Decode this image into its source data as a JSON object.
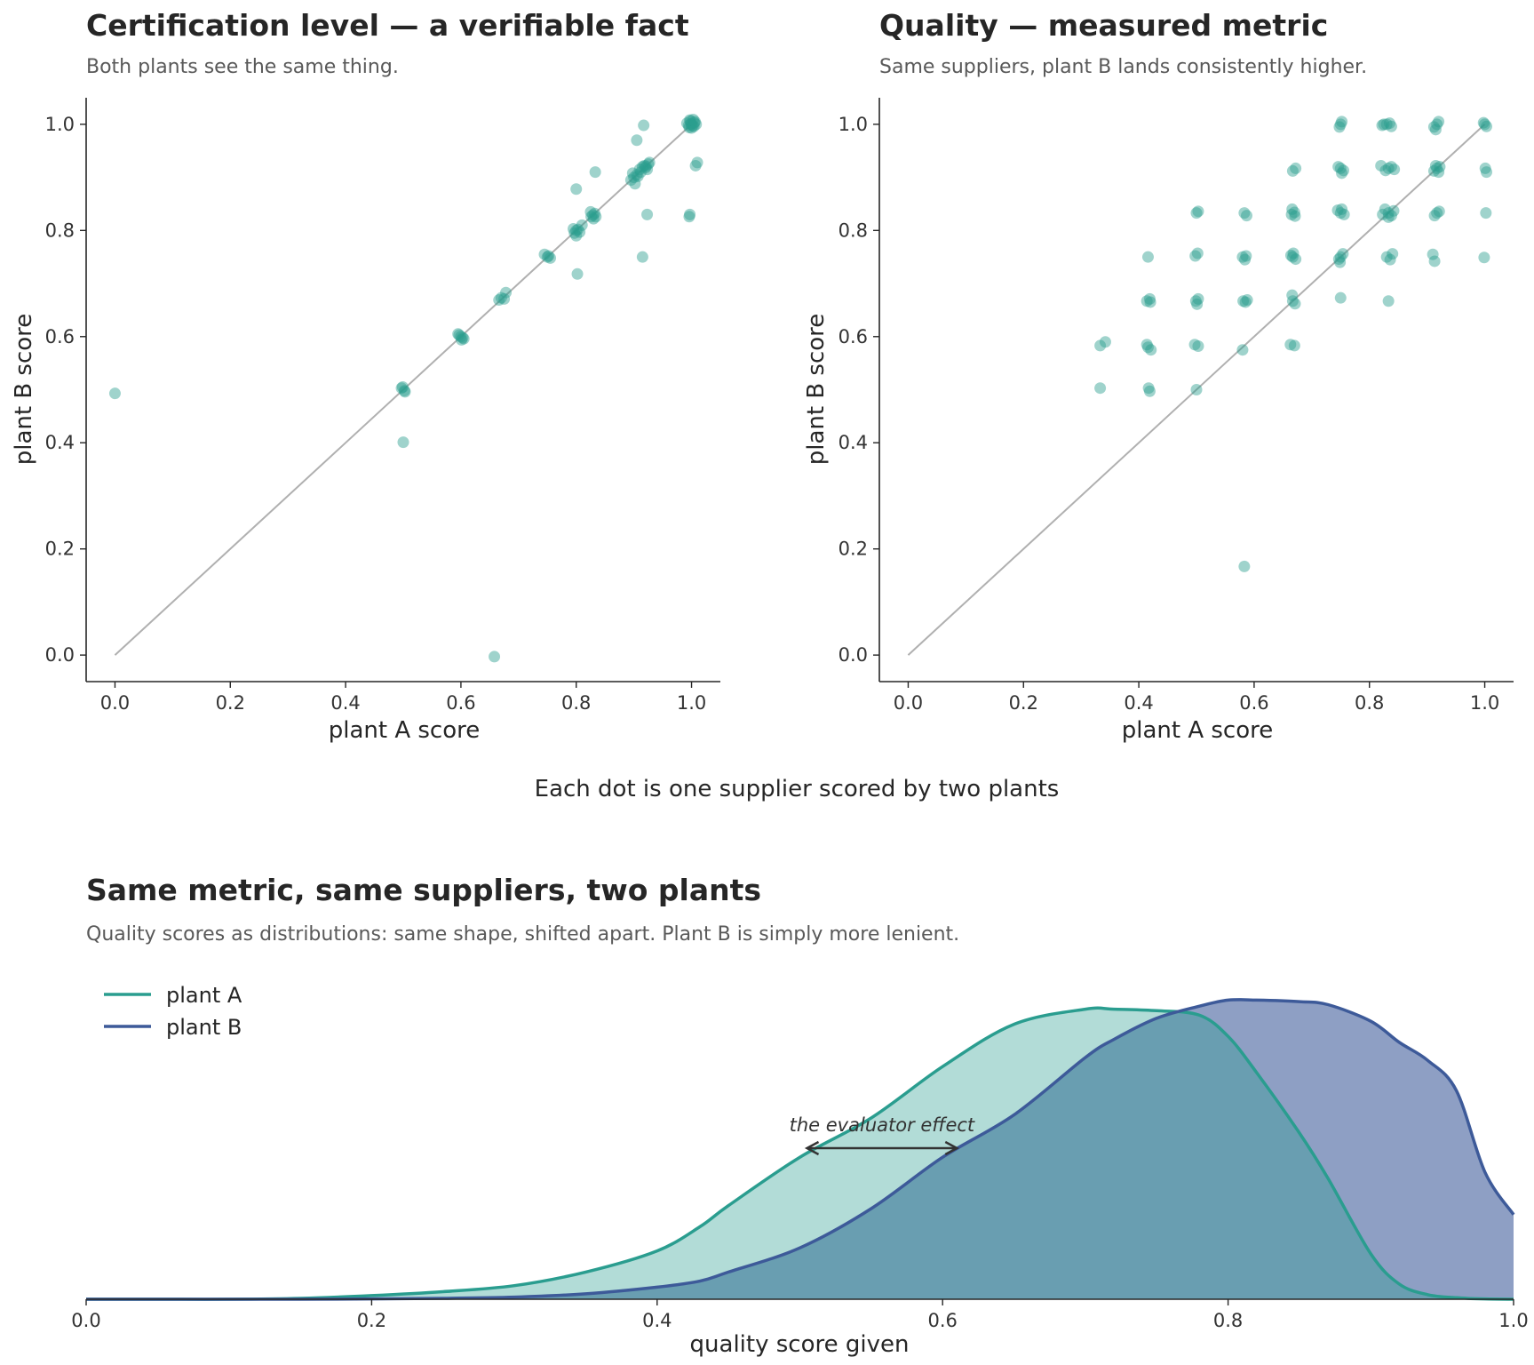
{
  "figure_caption": "Each dot is one supplier scored by two plants",
  "colors": {
    "plant_a": "#2a9d8f",
    "plant_b": "#3d5a99",
    "diagonal": "#b0b0b0",
    "axis": "#262626"
  },
  "chart_data": [
    {
      "type": "scatter",
      "title": "Certification level — a verifiable fact",
      "subtitle": "Both plants see the same thing.",
      "xlabel": "plant A score",
      "ylabel": "plant B score",
      "xlim": [
        -0.05,
        1.05
      ],
      "ylim": [
        -0.05,
        1.05
      ],
      "xticks": [
        "0.0",
        "0.2",
        "0.4",
        "0.6",
        "0.8",
        "1.0"
      ],
      "yticks": [
        "0.0",
        "0.2",
        "0.4",
        "0.6",
        "0.8",
        "1.0"
      ],
      "grid": false,
      "reference_line": "y = x",
      "points": [
        [
          0.0,
          0.493
        ],
        [
          0.658,
          -0.003
        ],
        [
          0.5,
          0.401
        ],
        [
          0.497,
          0.503
        ],
        [
          0.502,
          0.498
        ],
        [
          0.499,
          0.505
        ],
        [
          0.503,
          0.496
        ],
        [
          0.597,
          0.603
        ],
        [
          0.603,
          0.598
        ],
        [
          0.6,
          0.6
        ],
        [
          0.595,
          0.605
        ],
        [
          0.605,
          0.596
        ],
        [
          0.601,
          0.594
        ],
        [
          0.67,
          0.673
        ],
        [
          0.675,
          0.671
        ],
        [
          0.678,
          0.683
        ],
        [
          0.666,
          0.669
        ],
        [
          0.745,
          0.755
        ],
        [
          0.75,
          0.75
        ],
        [
          0.755,
          0.748
        ],
        [
          0.752,
          0.752
        ],
        [
          0.8,
          0.878
        ],
        [
          0.802,
          0.718
        ],
        [
          0.797,
          0.795
        ],
        [
          0.803,
          0.802
        ],
        [
          0.8,
          0.8
        ],
        [
          0.806,
          0.797
        ],
        [
          0.795,
          0.803
        ],
        [
          0.81,
          0.81
        ],
        [
          0.8,
          0.79
        ],
        [
          0.826,
          0.826
        ],
        [
          0.832,
          0.832
        ],
        [
          0.829,
          0.829
        ],
        [
          0.834,
          0.826
        ],
        [
          0.825,
          0.835
        ],
        [
          0.83,
          0.822
        ],
        [
          0.833,
          0.91
        ],
        [
          0.923,
          0.83
        ],
        [
          0.915,
          0.75
        ],
        [
          0.895,
          0.895
        ],
        [
          0.9,
          0.9
        ],
        [
          0.905,
          0.905
        ],
        [
          0.898,
          0.908
        ],
        [
          0.91,
          0.915
        ],
        [
          0.902,
          0.888
        ],
        [
          0.907,
          0.902
        ],
        [
          0.912,
          0.91
        ],
        [
          0.905,
          0.97
        ],
        [
          0.917,
          0.998
        ],
        [
          0.915,
          0.92
        ],
        [
          0.92,
          0.918
        ],
        [
          0.925,
          0.925
        ],
        [
          0.918,
          0.922
        ],
        [
          0.923,
          0.915
        ],
        [
          0.927,
          0.928
        ],
        [
          0.921,
          0.921
        ],
        [
          0.996,
          0.826
        ],
        [
          0.997,
          0.83
        ],
        [
          1.01,
          0.928
        ],
        [
          1.007,
          0.922
        ],
        [
          0.995,
          0.998
        ],
        [
          1.0,
          1.0
        ],
        [
          1.005,
          1.003
        ],
        [
          0.998,
          1.006
        ],
        [
          1.004,
          0.996
        ],
        [
          0.992,
          1.002
        ],
        [
          1.008,
          1.0
        ],
        [
          1.0,
          0.993
        ],
        [
          0.997,
          1.008
        ],
        [
          1.003,
          1.009
        ],
        [
          0.996,
          0.994
        ],
        [
          1.006,
          1.005
        ],
        [
          0.999,
          1.001
        ],
        [
          1.002,
          0.997
        ]
      ]
    },
    {
      "type": "scatter",
      "title": "Quality — measured metric",
      "subtitle": "Same suppliers, plant B lands consistently higher.",
      "xlabel": "plant A score",
      "ylabel": "plant B score",
      "xlim": [
        -0.05,
        1.05
      ],
      "ylim": [
        -0.05,
        1.05
      ],
      "xticks": [
        "0.0",
        "0.2",
        "0.4",
        "0.6",
        "0.8",
        "1.0"
      ],
      "yticks": [
        "0.0",
        "0.2",
        "0.4",
        "0.6",
        "0.8",
        "1.0"
      ],
      "grid": false,
      "reference_line": "y = x",
      "points": [
        [
          0.333,
          0.583
        ],
        [
          0.342,
          0.59
        ],
        [
          0.333,
          0.503
        ],
        [
          0.416,
          0.75
        ],
        [
          0.414,
          0.667
        ],
        [
          0.419,
          0.671
        ],
        [
          0.42,
          0.665
        ],
        [
          0.416,
          0.58
        ],
        [
          0.421,
          0.575
        ],
        [
          0.414,
          0.585
        ],
        [
          0.417,
          0.503
        ],
        [
          0.419,
          0.497
        ],
        [
          0.5,
          0.833
        ],
        [
          0.503,
          0.836
        ],
        [
          0.498,
          0.752
        ],
        [
          0.502,
          0.757
        ],
        [
          0.499,
          0.667
        ],
        [
          0.503,
          0.671
        ],
        [
          0.501,
          0.661
        ],
        [
          0.497,
          0.585
        ],
        [
          0.503,
          0.582
        ],
        [
          0.5,
          0.5
        ],
        [
          0.583,
          0.833
        ],
        [
          0.587,
          0.828
        ],
        [
          0.58,
          0.75
        ],
        [
          0.584,
          0.745
        ],
        [
          0.586,
          0.752
        ],
        [
          0.581,
          0.667
        ],
        [
          0.585,
          0.665
        ],
        [
          0.588,
          0.669
        ],
        [
          0.58,
          0.575
        ],
        [
          0.583,
          0.167
        ],
        [
          0.667,
          0.912
        ],
        [
          0.672,
          0.917
        ],
        [
          0.665,
          0.83
        ],
        [
          0.67,
          0.834
        ],
        [
          0.666,
          0.84
        ],
        [
          0.671,
          0.827
        ],
        [
          0.667,
          0.75
        ],
        [
          0.664,
          0.753
        ],
        [
          0.672,
          0.746
        ],
        [
          0.668,
          0.757
        ],
        [
          0.667,
          0.667
        ],
        [
          0.671,
          0.662
        ],
        [
          0.666,
          0.678
        ],
        [
          0.663,
          0.585
        ],
        [
          0.67,
          0.583
        ],
        [
          0.75,
          1.0
        ],
        [
          0.752,
          1.005
        ],
        [
          0.748,
          0.995
        ],
        [
          0.75,
          0.917
        ],
        [
          0.755,
          0.913
        ],
        [
          0.746,
          0.92
        ],
        [
          0.752,
          0.908
        ],
        [
          0.75,
          0.833
        ],
        [
          0.745,
          0.838
        ],
        [
          0.756,
          0.83
        ],
        [
          0.752,
          0.84
        ],
        [
          0.75,
          0.75
        ],
        [
          0.747,
          0.746
        ],
        [
          0.754,
          0.756
        ],
        [
          0.749,
          0.74
        ],
        [
          0.75,
          0.673
        ],
        [
          0.825,
          1.0
        ],
        [
          0.83,
          1.0
        ],
        [
          0.835,
          1.002
        ],
        [
          0.838,
          0.996
        ],
        [
          0.822,
          0.998
        ],
        [
          0.833,
          0.917
        ],
        [
          0.828,
          0.913
        ],
        [
          0.838,
          0.92
        ],
        [
          0.82,
          0.922
        ],
        [
          0.843,
          0.915
        ],
        [
          0.833,
          0.833
        ],
        [
          0.827,
          0.84
        ],
        [
          0.838,
          0.828
        ],
        [
          0.823,
          0.83
        ],
        [
          0.842,
          0.837
        ],
        [
          0.833,
          0.825
        ],
        [
          0.83,
          0.75
        ],
        [
          0.836,
          0.745
        ],
        [
          0.84,
          0.756
        ],
        [
          0.833,
          0.667
        ],
        [
          0.917,
          1.0
        ],
        [
          0.912,
          0.995
        ],
        [
          0.92,
          1.005
        ],
        [
          0.915,
          0.99
        ],
        [
          0.917,
          0.917
        ],
        [
          0.912,
          0.912
        ],
        [
          0.922,
          0.92
        ],
        [
          0.915,
          0.922
        ],
        [
          0.92,
          0.91
        ],
        [
          0.917,
          0.833
        ],
        [
          0.913,
          0.828
        ],
        [
          0.921,
          0.836
        ],
        [
          0.91,
          0.755
        ],
        [
          0.913,
          0.742
        ],
        [
          1.0,
          1.0
        ],
        [
          1.003,
          0.996
        ],
        [
          0.998,
          1.003
        ],
        [
          1.001,
          0.917
        ],
        [
          1.003,
          0.91
        ],
        [
          1.002,
          0.833
        ],
        [
          0.999,
          0.749
        ]
      ]
    },
    {
      "type": "area",
      "title": "Same metric, same suppliers, two plants",
      "subtitle": "Quality scores as distributions: same shape, shifted apart. Plant B is simply more lenient.",
      "xlabel": "quality score given",
      "ylabel": "",
      "xlim": [
        0.0,
        1.0
      ],
      "xticks": [
        "0.0",
        "0.2",
        "0.4",
        "0.6",
        "0.8",
        "1.0"
      ],
      "legend_position": "top-left",
      "annotation": {
        "text": "the evaluator effect",
        "from_x": 0.505,
        "to_x": 0.61,
        "y": 0.5
      },
      "x": [
        0.0,
        0.05,
        0.1,
        0.15,
        0.2,
        0.25,
        0.3,
        0.35,
        0.4,
        0.43,
        0.45,
        0.5,
        0.55,
        0.6,
        0.65,
        0.7,
        0.72,
        0.75,
        0.78,
        0.8,
        0.82,
        0.85,
        0.87,
        0.9,
        0.92,
        0.94,
        0.96,
        0.98,
        1.0
      ],
      "series": [
        {
          "name": "plant A",
          "values": [
            0.0,
            0.0,
            0.0,
            0.003,
            0.012,
            0.025,
            0.045,
            0.09,
            0.16,
            0.24,
            0.31,
            0.47,
            0.6,
            0.77,
            0.91,
            0.96,
            0.96,
            0.955,
            0.94,
            0.87,
            0.75,
            0.55,
            0.4,
            0.15,
            0.05,
            0.015,
            0.005,
            0.001,
            0.0
          ]
        },
        {
          "name": "plant B",
          "values": [
            0.0,
            0.0,
            0.0,
            0.0,
            0.001,
            0.003,
            0.007,
            0.018,
            0.04,
            0.06,
            0.09,
            0.17,
            0.3,
            0.47,
            0.61,
            0.8,
            0.86,
            0.93,
            0.97,
            0.99,
            0.99,
            0.985,
            0.975,
            0.92,
            0.85,
            0.79,
            0.69,
            0.42,
            0.28
          ]
        }
      ]
    }
  ]
}
